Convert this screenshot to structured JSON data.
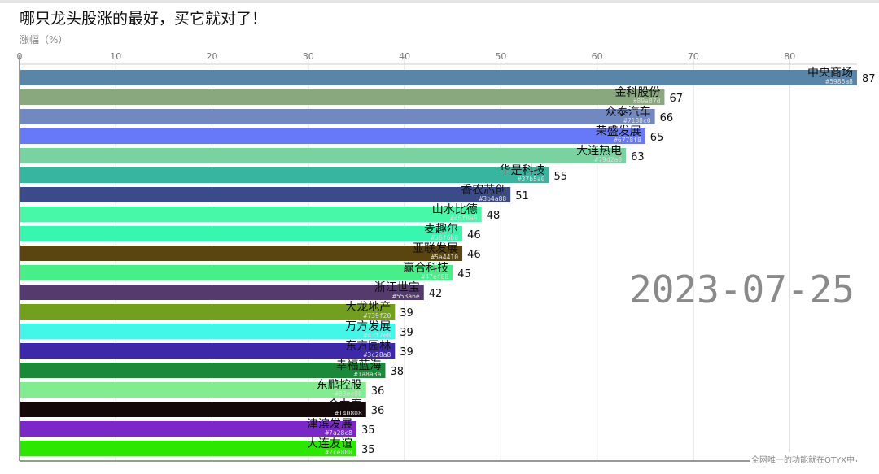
{
  "chart_data": {
    "type": "bar",
    "orientation": "horizontal",
    "title": "哪只龙头股涨的最好，买它就对了！",
    "xlabel": "涨幅（%）",
    "xlim": [
      0,
      87
    ],
    "xticks": [
      0,
      10,
      20,
      30,
      40,
      50,
      60,
      70,
      80
    ],
    "grid": true,
    "date_label": "2023-07-25",
    "watermark": "全网唯一的功能就在QTYX中",
    "bars": [
      {
        "name": "中央商场",
        "value": 87,
        "color": "#5986a8"
      },
      {
        "name": "金科股份",
        "value": 67,
        "color": "#89a87d"
      },
      {
        "name": "众泰汽车",
        "value": 66,
        "color": "#7188c0"
      },
      {
        "name": "荣盛发展",
        "value": 65,
        "color": "#6778f8"
      },
      {
        "name": "大连热电",
        "value": 63,
        "color": "#79d2a0"
      },
      {
        "name": "华是科技",
        "value": 55,
        "color": "#37b5a0"
      },
      {
        "name": "香农芯创",
        "value": 51,
        "color": "#3b4a88"
      },
      {
        "name": "山水比德",
        "value": 48,
        "color": "#46f8a8"
      },
      {
        "name": "麦趣尔",
        "value": 46,
        "color": "#36f6b0"
      },
      {
        "name": "亚联发展",
        "value": 46,
        "color": "#5a4410"
      },
      {
        "name": "赢合科技",
        "value": 45,
        "color": "#47ef88"
      },
      {
        "name": "浙江世宝",
        "value": 42,
        "color": "#553a6e"
      },
      {
        "name": "大龙地产",
        "value": 39,
        "color": "#739f20"
      },
      {
        "name": "万方发展",
        "value": 39,
        "color": "#43f7e8"
      },
      {
        "name": "东方园林",
        "value": 39,
        "color": "#3c28a8"
      },
      {
        "name": "幸福蓝海",
        "value": 38,
        "color": "#1a8a3a"
      },
      {
        "name": "东鹏控股",
        "value": 36,
        "color": "#83ec90"
      },
      {
        "name": "合力泰",
        "value": 36,
        "color": "#140808"
      },
      {
        "name": "津滨发展",
        "value": 35,
        "color": "#7a28c8"
      },
      {
        "name": "大连友谊",
        "value": 35,
        "color": "#2ce800"
      }
    ]
  }
}
